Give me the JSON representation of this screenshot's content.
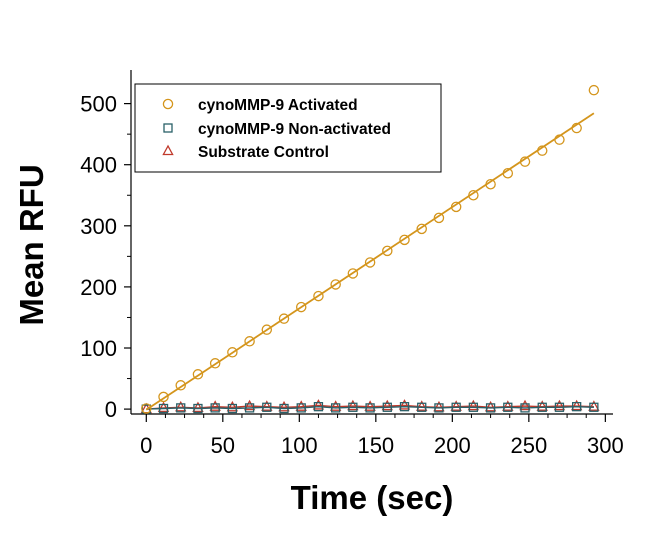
{
  "chart_data": {
    "type": "scatter",
    "title": "",
    "xlabel": "Time (sec)",
    "ylabel": "Mean RFU",
    "xlim": [
      -10,
      305
    ],
    "ylim": [
      -8,
      555
    ],
    "x_ticks": [
      0,
      50,
      100,
      150,
      200,
      250,
      300
    ],
    "y_ticks": [
      0,
      100,
      200,
      300,
      400,
      500
    ],
    "x_tick_labels": [
      "0",
      "50",
      "100",
      "150",
      "200",
      "250",
      "300"
    ],
    "y_tick_labels": [
      "0",
      "100",
      "200",
      "300",
      "400",
      "500"
    ],
    "legend_position": "top-left",
    "x": [
      0,
      11.25,
      22.5,
      33.75,
      45,
      56.25,
      67.5,
      78.75,
      90,
      101.25,
      112.5,
      123.75,
      135,
      146.25,
      157.5,
      168.75,
      180,
      191.25,
      202.5,
      213.75,
      225,
      236.25,
      247.5,
      258.75,
      270,
      281.25,
      292.5
    ],
    "series": [
      {
        "name": "cynoMMP-9 Activated",
        "marker": "circle",
        "color": "#d4951c",
        "fit_line": true,
        "values": [
          1,
          20,
          39,
          57,
          75,
          93,
          111,
          130,
          148,
          167,
          185,
          204,
          222,
          240,
          259,
          277,
          295,
          313,
          331,
          350,
          368,
          386,
          405,
          423,
          441,
          460,
          522
        ]
      },
      {
        "name": "cynoMMP-9 Non-activated",
        "marker": "square",
        "color": "#2a6068",
        "values": [
          0,
          1,
          2,
          1,
          2,
          1,
          2,
          3,
          1,
          2,
          4,
          2,
          3,
          2,
          3,
          4,
          3,
          2,
          3,
          3,
          2,
          3,
          2,
          3,
          3,
          4,
          3
        ]
      },
      {
        "name": "Substrate Control",
        "marker": "triangle",
        "color": "#c0392b",
        "values": [
          0,
          2,
          3,
          2,
          4,
          3,
          5,
          4,
          3,
          4,
          6,
          4,
          5,
          4,
          5,
          6,
          4,
          3,
          4,
          5,
          3,
          4,
          5,
          4,
          5,
          5,
          4
        ]
      }
    ]
  }
}
